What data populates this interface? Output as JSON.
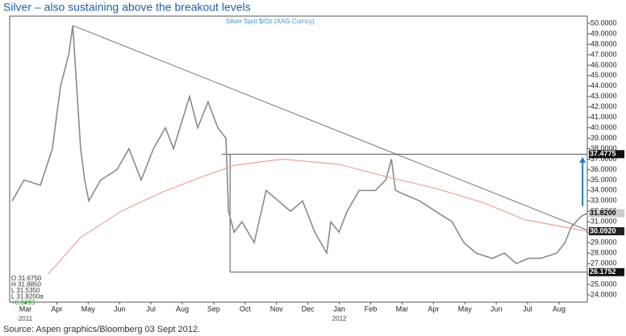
{
  "chart_data": {
    "type": "line",
    "title": "Silver – also sustaining above the breakout levels",
    "subtitle": "Silver Spot   $/Oz (XAG Curncy)",
    "source": "Source: Aspen graphics/Bloomberg 03 Sept 2012.",
    "xlim": [
      0,
      18.4
    ],
    "xticks": [
      {
        "value": 0.5,
        "label": "Mar"
      },
      {
        "value": 1.5,
        "label": "Apr"
      },
      {
        "value": 2.5,
        "label": "May"
      },
      {
        "value": 3.5,
        "label": "Jun"
      },
      {
        "value": 4.5,
        "label": "Jul"
      },
      {
        "value": 5.5,
        "label": "Aug"
      },
      {
        "value": 6.5,
        "label": "Sep"
      },
      {
        "value": 7.5,
        "label": "Oct"
      },
      {
        "value": 8.5,
        "label": "Nov"
      },
      {
        "value": 9.5,
        "label": "Dec"
      },
      {
        "value": 10.5,
        "label": "Jan"
      },
      {
        "value": 11.5,
        "label": "Feb"
      },
      {
        "value": 12.5,
        "label": "Mar"
      },
      {
        "value": 13.5,
        "label": "Apr"
      },
      {
        "value": 14.5,
        "label": "May"
      },
      {
        "value": 15.5,
        "label": "Jun"
      },
      {
        "value": 16.5,
        "label": "Jul"
      },
      {
        "value": 17.5,
        "label": "Aug"
      }
    ],
    "year_labels": [
      {
        "value": 0.5,
        "label": "2011"
      },
      {
        "value": 10.5,
        "label": "2012"
      }
    ],
    "ylim": [
      23.3,
      50.7
    ],
    "yticks": [
      {
        "value": 24,
        "label": "24.0000"
      },
      {
        "value": 25,
        "label": "25.0000"
      },
      {
        "value": 26,
        "label": "26.0000"
      },
      {
        "value": 27,
        "label": "27.0000"
      },
      {
        "value": 28,
        "label": "28.0000"
      },
      {
        "value": 29,
        "label": "29.0000"
      },
      {
        "value": 30,
        "label": "30.0000"
      },
      {
        "value": 31,
        "label": "31.0000"
      },
      {
        "value": 32,
        "label": "32.0000"
      },
      {
        "value": 33,
        "label": "33.0000"
      },
      {
        "value": 34,
        "label": "34.0000"
      },
      {
        "value": 35,
        "label": "35.0000"
      },
      {
        "value": 36,
        "label": "36.0000"
      },
      {
        "value": 37,
        "label": "37.0000"
      },
      {
        "value": 38,
        "label": "38.0000"
      },
      {
        "value": 39,
        "label": "39.0000"
      },
      {
        "value": 40,
        "label": "40.0000"
      },
      {
        "value": 41,
        "label": "41.0000"
      },
      {
        "value": 42,
        "label": "42.0000"
      },
      {
        "value": 43,
        "label": "43.0000"
      },
      {
        "value": 44,
        "label": "44.0000"
      },
      {
        "value": 45,
        "label": "45.0000"
      },
      {
        "value": 46,
        "label": "46.0000"
      },
      {
        "value": 47,
        "label": "47.0000"
      },
      {
        "value": 48,
        "label": "48.0000"
      },
      {
        "value": 49,
        "label": "49.0000"
      },
      {
        "value": 50,
        "label": "50.0000"
      }
    ],
    "series": [
      {
        "color": "#8a8a8a",
        "x": [
          0.08,
          0.46,
          0.98,
          1.36,
          1.62,
          1.88,
          2.01,
          2.26,
          2.39,
          2.52,
          2.9,
          3.42,
          3.8,
          4.19,
          4.58,
          4.96,
          5.22,
          5.73,
          5.99,
          6.32,
          6.63,
          6.89,
          6.97,
          7.15,
          7.4,
          7.79,
          8.17,
          8.56,
          8.95,
          9.33,
          9.72,
          10.1,
          10.23,
          10.49,
          10.75,
          11.13,
          11.65,
          11.98,
          12.16,
          12.29,
          12.67,
          13.06,
          13.57,
          14.09,
          14.47,
          14.86,
          15.37,
          15.76,
          16.14,
          16.53,
          16.92,
          17.43,
          17.69,
          17.89,
          18.2,
          18.38
        ],
        "values": [
          33,
          35,
          34.5,
          38,
          44,
          47,
          49.8,
          38,
          35,
          33,
          35,
          36,
          38,
          35,
          38,
          40,
          38,
          43,
          40,
          42.5,
          40,
          39,
          32,
          30,
          31,
          29,
          34,
          33,
          32,
          33,
          30,
          28,
          31,
          30,
          32,
          34,
          34,
          35,
          37,
          34,
          33.5,
          33,
          32,
          31,
          29,
          28,
          27.5,
          28,
          27,
          27.5,
          27.5,
          28,
          29,
          30.5,
          31.5,
          31.8
        ]
      },
      {
        "color": "#f0a0a0",
        "x": [
          1.23,
          2.26,
          3.55,
          4.83,
          6.12,
          7.15,
          8.69,
          10.49,
          12.03,
          13.57,
          15.12,
          16.4,
          18.38
        ],
        "values": [
          26,
          29.5,
          32,
          33.8,
          35.3,
          36.4,
          37,
          36.5,
          35.3,
          34.2,
          32.8,
          31.2,
          30.1
        ]
      }
    ],
    "trend_line": {
      "x": [
        2.01,
        18.4
      ],
      "values": [
        49.8,
        30.2
      ]
    },
    "levels": [
      {
        "value": 37.4775,
        "label": "37.4775",
        "from": 6.76
      },
      {
        "value": 26.1752,
        "label": "26.1752",
        "from": 7.02
      }
    ],
    "price_labels": [
      {
        "value": 31.82,
        "label": "31.8200"
      },
      {
        "value": 30.092,
        "label": "30.0920"
      }
    ],
    "arrow": {
      "x": 18.25,
      "from": 32.5,
      "to": 37.2
    },
    "ohlc_box": [
      "O 31.6750",
      "H 31.8850",
      "L 31.5350",
      "L 31.8200a"
    ],
    "change": "+0.0493"
  }
}
